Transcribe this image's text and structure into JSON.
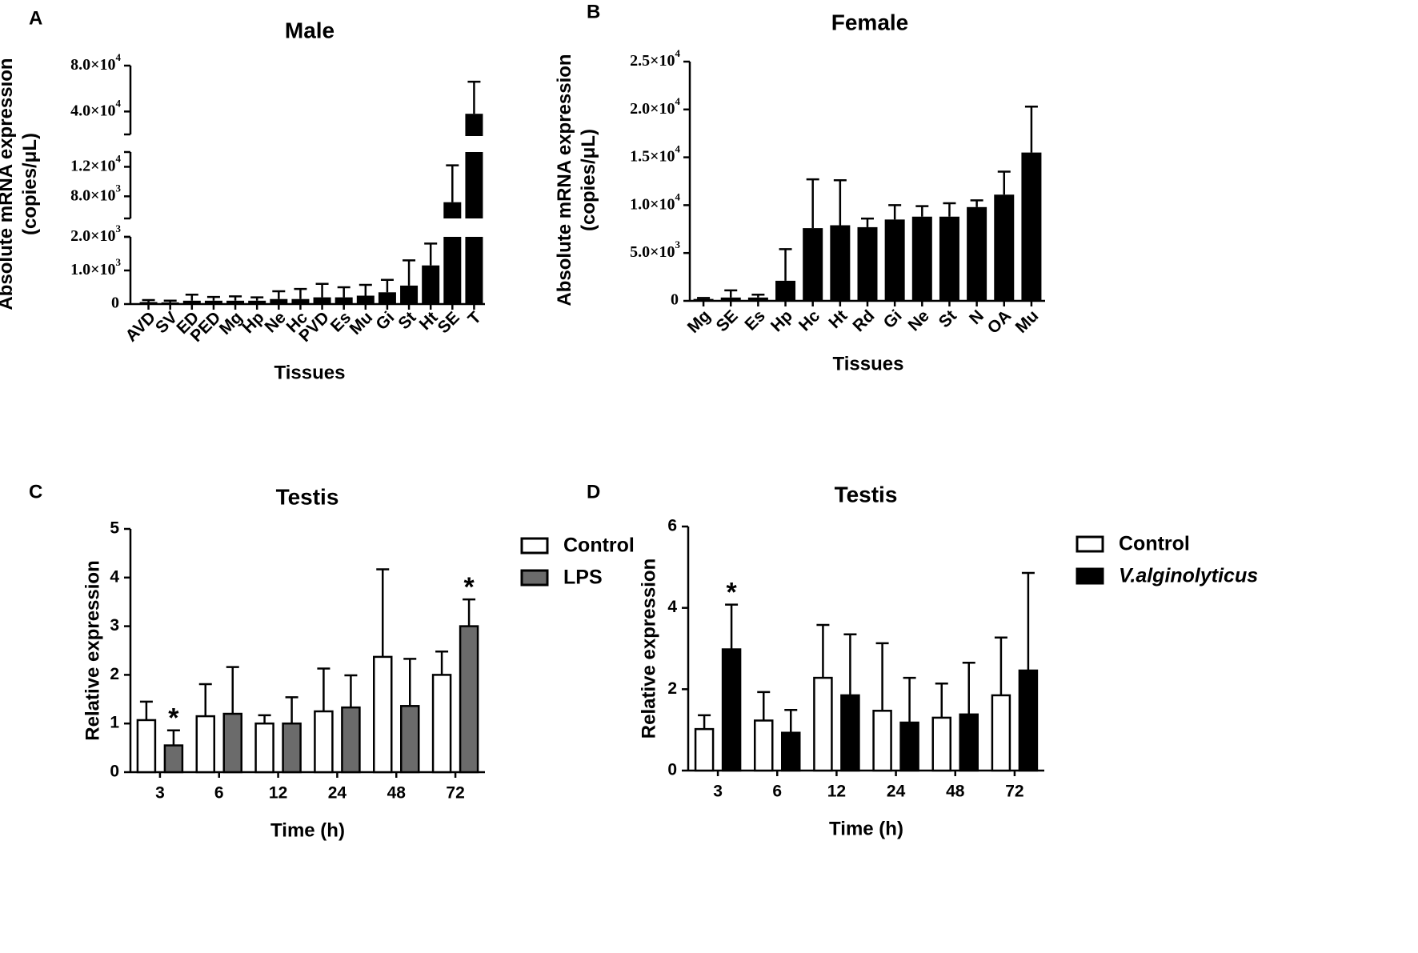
{
  "chart_data": [
    {
      "panel": "A",
      "type": "bar",
      "title": "Male",
      "xlabel": "Tissues",
      "ylabel": "Absolute mRNA expression",
      "ylabel_unit": "(copies/μL)",
      "broken_y_axis": true,
      "y_segments": [
        {
          "range": [
            0,
            2000
          ],
          "ticks": [
            "0",
            "1.0×10³",
            "2.0×10³"
          ]
        },
        {
          "range": [
            5000,
            14000
          ],
          "ticks": [
            "8.0×10³",
            "1.2×10⁴"
          ]
        },
        {
          "range": [
            20000,
            80000
          ],
          "ticks": [
            "4.0×10⁴",
            "8.0×10⁴"
          ]
        }
      ],
      "categories": [
        "AVD",
        "SV",
        "ED",
        "PED",
        "Mg",
        "Hp",
        "Ne",
        "Hc",
        "PVD",
        "Es",
        "Mu",
        "Gi",
        "St",
        "Ht",
        "SE",
        "T"
      ],
      "values": [
        60,
        50,
        100,
        100,
        100,
        100,
        150,
        150,
        200,
        200,
        250,
        350,
        550,
        1150,
        7200,
        38000
      ],
      "errors": [
        60,
        50,
        180,
        110,
        130,
        100,
        230,
        300,
        400,
        300,
        320,
        370,
        750,
        650,
        5000,
        28000
      ],
      "fill": "#000000"
    },
    {
      "panel": "B",
      "type": "bar",
      "title": "Female",
      "xlabel": "Tissues",
      "ylabel": "Absolute mRNA expression",
      "ylabel_unit": "(copies/μL)",
      "ylim": [
        0,
        25000
      ],
      "yticks": [
        "0",
        "5.0×10³",
        "1.0×10⁴",
        "1.5×10⁴",
        "2.0×10⁴",
        "2.5×10⁴"
      ],
      "categories": [
        "Mg",
        "SE",
        "Es",
        "Hp",
        "Hc",
        "Ht",
        "Rd",
        "Gi",
        "Ne",
        "St",
        "N",
        "OA",
        "Mu"
      ],
      "values": [
        200,
        350,
        350,
        2100,
        7600,
        7900,
        7700,
        8500,
        8800,
        8800,
        9800,
        11100,
        15500
      ],
      "errors": [
        100,
        750,
        300,
        3300,
        5100,
        4700,
        900,
        1500,
        1100,
        1400,
        700,
        2400,
        4800
      ],
      "fill": "#000000"
    },
    {
      "panel": "C",
      "type": "bar",
      "title": "Testis",
      "xlabel": "Time (h)",
      "ylabel": "Relative expression",
      "ylim": [
        0,
        5
      ],
      "yticks": [
        "0",
        "1",
        "2",
        "3",
        "4",
        "5"
      ],
      "categories": [
        "3",
        "6",
        "12",
        "24",
        "48",
        "72"
      ],
      "series": [
        {
          "name": "Control",
          "color": "#ffffff",
          "values": [
            1.07,
            1.15,
            1.0,
            1.25,
            2.37,
            2.0
          ],
          "errors": [
            0.38,
            0.66,
            0.17,
            0.88,
            1.8,
            0.48
          ]
        },
        {
          "name": "LPS",
          "color": "#6b6b6b",
          "values": [
            0.55,
            1.2,
            1.0,
            1.33,
            1.36,
            3.0
          ],
          "errors": [
            0.31,
            0.96,
            0.54,
            0.66,
            0.97,
            0.55
          ]
        }
      ],
      "significance": [
        {
          "series": 1,
          "index": 0,
          "mark": "*"
        },
        {
          "series": 1,
          "index": 5,
          "mark": "*"
        }
      ]
    },
    {
      "panel": "D",
      "type": "bar",
      "title": "Testis",
      "xlabel": "Time (h)",
      "ylabel": "Relative expression",
      "ylim": [
        0,
        6
      ],
      "yticks": [
        "0",
        "2",
        "4",
        "6"
      ],
      "categories": [
        "3",
        "6",
        "12",
        "24",
        "48",
        "72"
      ],
      "series": [
        {
          "name": "Control",
          "color": "#ffffff",
          "values": [
            1.02,
            1.23,
            2.28,
            1.47,
            1.3,
            1.85
          ],
          "errors": [
            0.34,
            0.7,
            1.3,
            1.66,
            0.84,
            1.42
          ]
        },
        {
          "name": "V.alginolyticus",
          "color": "#000000",
          "values": [
            2.98,
            0.93,
            1.85,
            1.18,
            1.38,
            2.46
          ],
          "errors": [
            1.1,
            0.56,
            1.5,
            1.1,
            1.27,
            2.4
          ]
        }
      ],
      "significance": [
        {
          "series": 1,
          "index": 0,
          "mark": "*"
        }
      ]
    }
  ]
}
